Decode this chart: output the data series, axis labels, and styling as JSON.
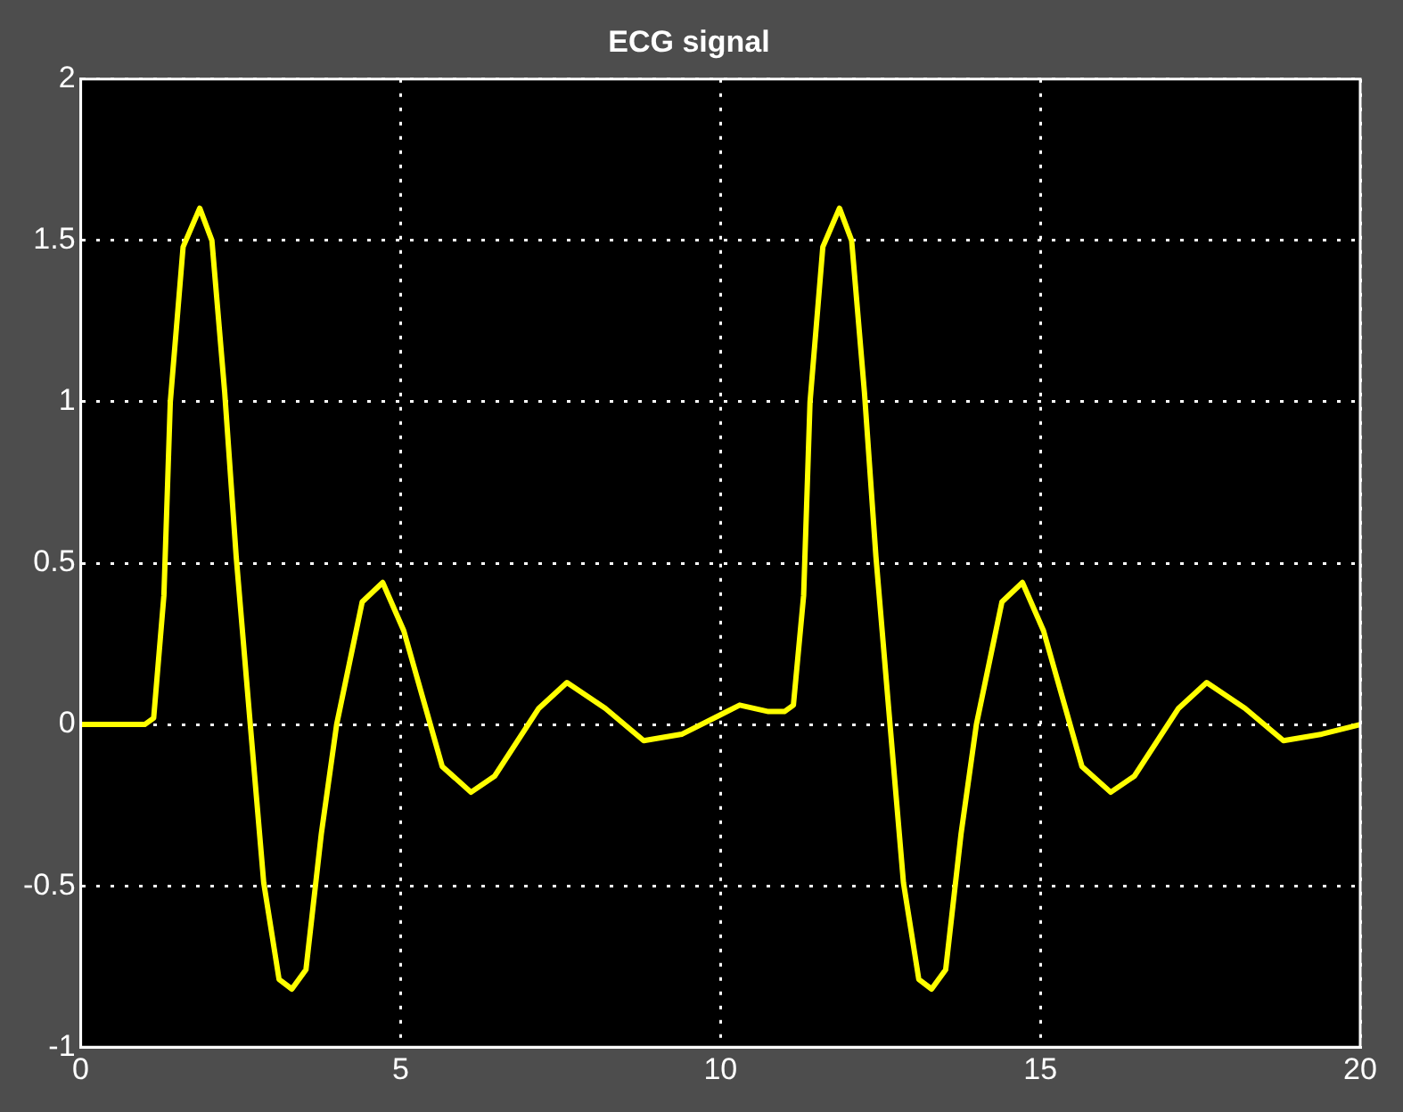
{
  "chart_data": {
    "type": "line",
    "title": "ECG signal",
    "xlim": [
      0,
      20
    ],
    "ylim": [
      -1,
      2
    ],
    "xticks": [
      0,
      5,
      10,
      15,
      20
    ],
    "yticks": [
      -1,
      -0.5,
      0,
      0.5,
      1,
      1.5,
      2
    ],
    "grid": true,
    "legend": false,
    "marker": "none",
    "line_style": "solid",
    "series": [
      {
        "color": "#ffff00",
        "x": [
          0,
          1.0,
          1.14,
          1.3,
          1.4,
          1.6,
          1.86,
          2.05,
          2.25,
          2.43,
          2.65,
          2.86,
          3.1,
          3.3,
          3.52,
          3.76,
          4.0,
          4.4,
          4.72,
          5.05,
          5.65,
          6.1,
          6.47,
          7.16,
          7.6,
          8.2,
          8.8,
          9.4,
          10.0,
          10.3,
          10.75,
          11.0,
          11.14,
          11.3,
          11.4,
          11.6,
          11.86,
          12.05,
          12.25,
          12.43,
          12.65,
          12.86,
          13.1,
          13.3,
          13.52,
          13.76,
          14.0,
          14.4,
          14.72,
          15.05,
          15.65,
          16.1,
          16.47,
          17.16,
          17.6,
          18.2,
          18.8,
          19.4,
          20.0
        ],
        "values": [
          0,
          0,
          0.02,
          0.4,
          1.0,
          1.48,
          1.6,
          1.5,
          1.03,
          0.52,
          0,
          -0.49,
          -0.79,
          -0.82,
          -0.76,
          -0.34,
          0,
          0.38,
          0.44,
          0.29,
          -0.13,
          -0.21,
          -0.16,
          0.05,
          0.13,
          0.05,
          -0.05,
          -0.03,
          0.03,
          0.06,
          0.04,
          0.04,
          0.06,
          0.4,
          1.0,
          1.48,
          1.6,
          1.5,
          1.03,
          0.52,
          0,
          -0.49,
          -0.79,
          -0.82,
          -0.76,
          -0.34,
          0,
          0.38,
          0.44,
          0.29,
          -0.13,
          -0.21,
          -0.16,
          0.05,
          0.13,
          0.05,
          -0.05,
          -0.03,
          0
        ]
      }
    ]
  }
}
